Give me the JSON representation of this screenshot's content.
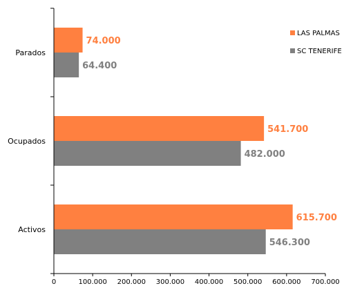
{
  "chart_data": {
    "type": "bar",
    "orientation": "horizontal",
    "categories": [
      "Activos",
      "Ocupados",
      "Parados"
    ],
    "series": [
      {
        "name": "LAS PALMAS",
        "values": [
          615700,
          541700,
          74000
        ],
        "labels": [
          "615.700",
          "541.700",
          "74.000"
        ],
        "color": "#ff8040"
      },
      {
        "name": "SC TENERIFE",
        "values": [
          546300,
          482000,
          64400
        ],
        "labels": [
          "546.300",
          "482.000",
          "64.400"
        ],
        "color": "#808080"
      }
    ],
    "xlim": [
      0,
      700000
    ],
    "xticks": [
      0,
      100000,
      200000,
      300000,
      400000,
      500000,
      600000,
      700000
    ],
    "xtick_labels": [
      "0",
      "100.000",
      "200.000",
      "300.000",
      "400.000",
      "500.000",
      "600.000",
      "700.000"
    ],
    "legend_position": "top-right",
    "grid": false,
    "title": "",
    "xlabel": "",
    "ylabel": ""
  }
}
